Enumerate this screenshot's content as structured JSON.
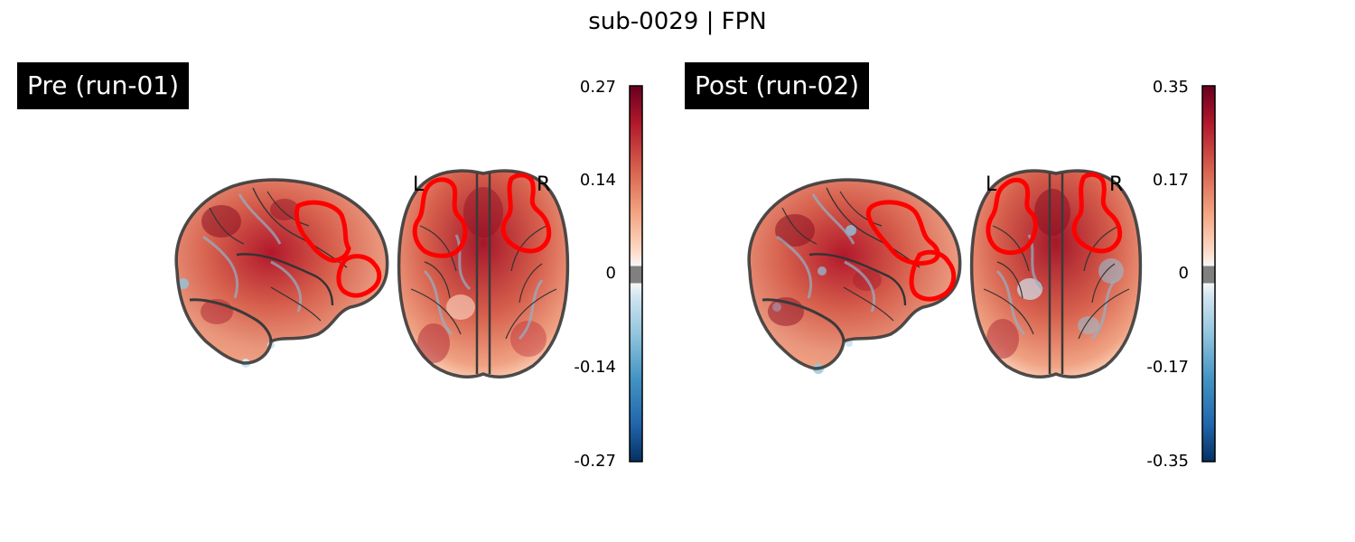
{
  "figure": {
    "title": "sub-0029 | FPN"
  },
  "colormap": {
    "name": "RdBu_r",
    "stops": [
      "#053061",
      "#2166ac",
      "#4393c3",
      "#92c5de",
      "#d1e5f0",
      "#f7f7f7",
      "#fddbc7",
      "#f4a582",
      "#d6604d",
      "#b2182b",
      "#67001f"
    ],
    "threshold_color": "#808080"
  },
  "contour_color": "#ff0000",
  "panels": [
    {
      "label": "Pre (run-01)",
      "orientation": {
        "left": "L",
        "right": "R"
      },
      "colorbar": {
        "ticks": [
          "0.27",
          "0.14",
          "0",
          "-0.14",
          "-0.27"
        ],
        "vmin": -0.27,
        "vmax": 0.27
      }
    },
    {
      "label": "Post (run-02)",
      "orientation": {
        "left": "L",
        "right": "R"
      },
      "colorbar": {
        "ticks": [
          "0.35",
          "0.17",
          "0",
          "-0.17",
          "-0.35"
        ],
        "vmin": -0.35,
        "vmax": 0.35
      }
    }
  ]
}
